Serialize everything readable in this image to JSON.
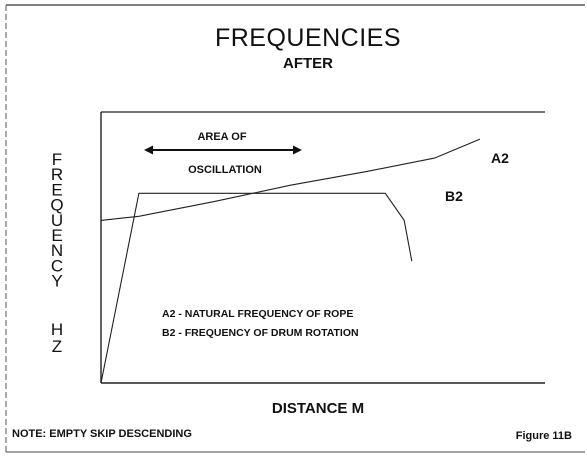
{
  "chart_data": {
    "type": "line",
    "title": "FREQUENCIES",
    "subtitle": "AFTER",
    "xlabel": "DISTANCE M",
    "ylabel": "FREQUENCY",
    "ylabel_units": "HZ",
    "grid": false,
    "x_ticks": "none",
    "y_ticks": "none",
    "series": [
      {
        "name": "A2",
        "values": [
          [
            0,
            0.6
          ],
          [
            0.1,
            0.615
          ],
          [
            0.3,
            0.67
          ],
          [
            0.5,
            0.73
          ],
          [
            0.7,
            0.78
          ],
          [
            0.88,
            0.83
          ],
          [
            1.0,
            0.9
          ]
        ]
      },
      {
        "name": "B2",
        "values": [
          [
            0,
            0.0
          ],
          [
            0.1,
            0.7
          ],
          [
            0.5,
            0.7
          ],
          [
            0.75,
            0.7
          ],
          [
            0.8,
            0.6
          ],
          [
            0.82,
            0.45
          ]
        ]
      }
    ],
    "annotations": {
      "area_label_1": "AREA OF",
      "area_label_2": "OSCILLATION",
      "area_range": [
        0.1,
        0.45
      ],
      "legend_a2": "A2 - NATURAL FREQUENCY OF ROPE",
      "legend_b2": "B2 - FREQUENCY OF DRUM ROTATION"
    },
    "note": "NOTE: EMPTY SKIP DESCENDING",
    "figure_label": "Figure 11B"
  }
}
